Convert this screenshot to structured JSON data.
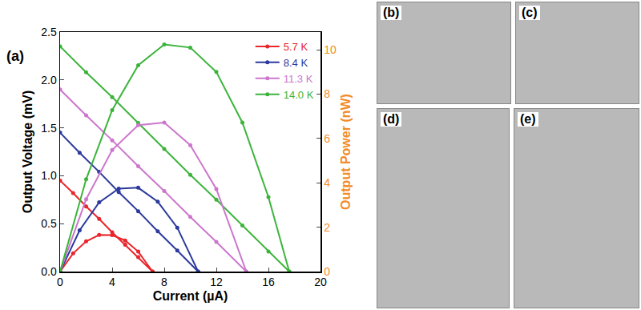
{
  "chart_data": {
    "type": "line",
    "annotations": [
      {
        "text": "(a)"
      }
    ],
    "x_label": "Current (µA)",
    "y_label": "Output Voltage (mV)",
    "y2_label": "Output Power (nW)",
    "xlim": [
      0,
      20
    ],
    "xticks": [
      0,
      4,
      8,
      12,
      16,
      20
    ],
    "ylim": [
      0,
      2.5
    ],
    "yticks": [
      {
        "value": 0,
        "label": "0.0"
      },
      0.5,
      {
        "value": 1,
        "label": "1.0"
      },
      1.5,
      {
        "value": 2,
        "label": "2.0"
      },
      2.5
    ],
    "y2lim": [
      0,
      10.8
    ],
    "y2ticks": [
      0,
      2,
      4,
      6,
      8,
      10
    ],
    "grid": false,
    "legend": "upper right",
    "marker": "circle",
    "line_style": "solid",
    "series": [
      {
        "name": "5.7 K",
        "color": "#e8262b",
        "axis": "y",
        "x": [
          0,
          1,
          2,
          3,
          4,
          5,
          6,
          7.1
        ],
        "values": [
          0.95,
          0.82,
          0.68,
          0.55,
          0.41,
          0.28,
          0.15,
          0.0
        ]
      },
      {
        "name": "8.4 K",
        "color": "#2b3a9c",
        "axis": "y",
        "x": [
          0,
          1.5,
          3,
          4.5,
          6,
          7.5,
          9,
          10.6
        ],
        "values": [
          1.45,
          1.24,
          1.04,
          0.83,
          0.63,
          0.42,
          0.22,
          0.0
        ]
      },
      {
        "name": "11.3 K",
        "color": "#cc77cc",
        "axis": "y",
        "x": [
          0,
          2,
          4,
          6,
          8,
          10,
          12,
          14.3
        ],
        "values": [
          1.9,
          1.63,
          1.37,
          1.1,
          0.84,
          0.57,
          0.31,
          0.0
        ]
      },
      {
        "name": "14.0 K",
        "color": "#3cb43c",
        "axis": "y",
        "x": [
          0,
          2,
          4,
          6,
          8,
          10,
          12,
          14,
          16,
          17.6
        ],
        "values": [
          2.35,
          2.08,
          1.82,
          1.55,
          1.28,
          1.01,
          0.75,
          0.48,
          0.21,
          0.0
        ]
      },
      {
        "name": "5.7 K",
        "color": "#e8262b",
        "axis": "y2",
        "x": [
          0,
          1,
          2,
          3,
          4,
          5,
          6,
          7.1
        ],
        "values": [
          0,
          0.82,
          1.36,
          1.65,
          1.64,
          1.4,
          0.9,
          0
        ]
      },
      {
        "name": "8.4 K",
        "color": "#2b3a9c",
        "axis": "y2",
        "x": [
          0,
          1.5,
          3,
          4.5,
          6,
          7.5,
          9,
          10.6
        ],
        "values": [
          0,
          1.86,
          3.12,
          3.74,
          3.78,
          3.15,
          1.98,
          0
        ]
      },
      {
        "name": "11.3 K",
        "color": "#cc77cc",
        "axis": "y2",
        "x": [
          0,
          2,
          4,
          6,
          8,
          10,
          12,
          14.3
        ],
        "values": [
          0,
          3.26,
          5.48,
          6.6,
          6.72,
          5.7,
          3.72,
          0
        ]
      },
      {
        "name": "14.0 K",
        "color": "#3cb43c",
        "axis": "y2",
        "x": [
          0,
          2,
          4,
          6,
          8,
          10,
          12,
          14,
          16,
          17.6
        ],
        "values": [
          0,
          4.16,
          7.28,
          9.3,
          10.24,
          10.1,
          9.0,
          6.72,
          3.36,
          0
        ]
      }
    ]
  },
  "panels": [
    "(b)",
    "(c)",
    "(d)",
    "(e)"
  ]
}
